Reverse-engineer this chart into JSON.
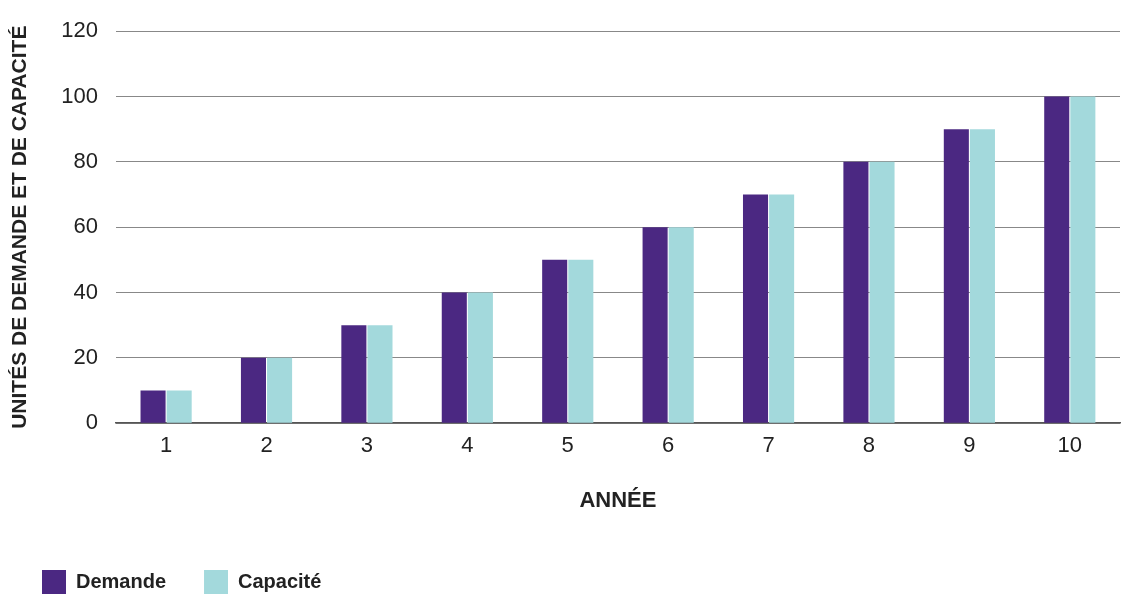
{
  "chart_data": {
    "type": "bar",
    "xlabel": "ANNÉE",
    "ylabel": "UNITÉS DE DEMANDE ET DE CAPACITÉ",
    "categories": [
      "1",
      "2",
      "3",
      "4",
      "5",
      "6",
      "7",
      "8",
      "9",
      "10"
    ],
    "series": [
      {
        "name": "Demande",
        "color": "#4b2882",
        "values": [
          10,
          20,
          30,
          40,
          50,
          60,
          70,
          80,
          90,
          100
        ]
      },
      {
        "name": "Capacité",
        "color": "#a3d9dc",
        "values": [
          10,
          20,
          30,
          40,
          50,
          60,
          70,
          80,
          90,
          100
        ]
      }
    ],
    "ylim": [
      0,
      120
    ],
    "yticks": [
      0,
      20,
      40,
      60,
      80,
      100,
      120
    ],
    "grid": "y",
    "legend": "bottom left"
  }
}
